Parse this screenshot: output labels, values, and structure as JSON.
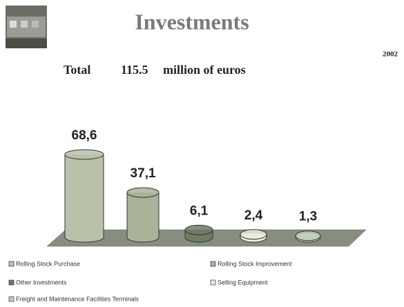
{
  "chart_data": {
    "type": "bar",
    "title": "Investments",
    "total_label": "Total",
    "total": 115.5,
    "unit": "million of euros",
    "year": "2002",
    "series": [
      {
        "name": "Rolling Stock Purchase",
        "color": "#b9c2a9",
        "values": [
          68.6
        ],
        "value_labels": [
          "68,6"
        ]
      },
      {
        "name": "Rolling Stock Improvement",
        "color": "#a9b399",
        "values": [
          37.1
        ],
        "value_labels": [
          "37,1"
        ]
      },
      {
        "name": "Other Investments",
        "color": "#6f7c63",
        "values": [
          6.1
        ],
        "value_labels": [
          "6,1"
        ]
      },
      {
        "name": "Selling Equipment",
        "color": "#ecebdc",
        "values": [
          2.4
        ],
        "value_labels": [
          "2,4"
        ]
      },
      {
        "name": "Freight and Maintenance Facilities Terminals",
        "color": "#c4ccb8",
        "values": [
          1.3
        ],
        "value_labels": [
          "1,3"
        ]
      }
    ]
  }
}
